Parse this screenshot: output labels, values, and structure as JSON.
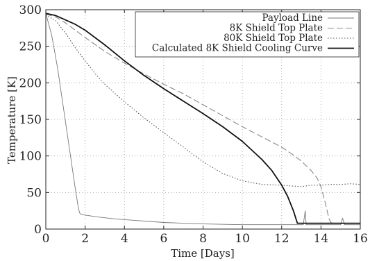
{
  "chart_data": {
    "type": "line",
    "title": "",
    "xlabel": "Time [Days]",
    "ylabel": "Temperature [K]",
    "xlim": [
      0,
      16
    ],
    "ylim": [
      0,
      300
    ],
    "xticks": [
      0,
      2,
      4,
      6,
      8,
      10,
      12,
      14,
      16
    ],
    "yticks": [
      0,
      50,
      100,
      150,
      200,
      250,
      300
    ],
    "grid": true,
    "legend_position": "top-right",
    "series": [
      {
        "name": "Payload Line",
        "style": "solid-thin",
        "color": "#777777",
        "x": [
          0,
          0.3,
          0.6,
          0.9,
          1.2,
          1.5,
          1.65,
          1.72,
          1.8,
          2.5,
          3.5,
          4.5,
          6,
          8,
          10,
          12,
          13.1,
          13.2,
          13.25,
          13.3,
          14,
          15,
          15.1,
          15.2,
          15.3,
          15.4,
          16
        ],
        "y": [
          295,
          265,
          220,
          165,
          110,
          55,
          30,
          22,
          20,
          17,
          14,
          12,
          9,
          7,
          6,
          6,
          6,
          25,
          6,
          6,
          6,
          6,
          15,
          6,
          6,
          6,
          6
        ]
      },
      {
        "name": "8K Shield Top Plate",
        "style": "dashed",
        "color": "#888888",
        "x": [
          0,
          0.5,
          1,
          1.5,
          2,
          3,
          4,
          5,
          6,
          7,
          8,
          9,
          10,
          11,
          12,
          12.5,
          13,
          13.5,
          13.8,
          14,
          14.2,
          14.4,
          14.5,
          14.6,
          15,
          16
        ],
        "y": [
          294,
          290,
          282,
          272,
          262,
          243,
          227,
          212,
          198,
          185,
          170,
          155,
          140,
          126,
          112,
          103,
          93,
          80,
          70,
          58,
          38,
          15,
          9,
          8,
          8,
          8
        ]
      },
      {
        "name": "80K Shield Top Plate",
        "style": "dotted",
        "color": "#555555",
        "x": [
          0,
          0.5,
          1,
          1.5,
          2,
          2.5,
          3,
          3.5,
          4,
          5,
          6,
          7,
          8,
          9,
          10,
          11,
          12,
          12.5,
          13,
          13.5,
          14,
          14.5,
          15,
          15.5,
          16
        ],
        "y": [
          293,
          285,
          268,
          248,
          230,
          213,
          198,
          186,
          174,
          152,
          132,
          112,
          92,
          76,
          66,
          61,
          60,
          59,
          58,
          60,
          60,
          61,
          61,
          62,
          61
        ]
      },
      {
        "name": "Calculated 8K Shield Cooling Curve",
        "style": "solid-thick",
        "color": "#111111",
        "x": [
          0,
          0.5,
          1,
          1.5,
          2,
          3,
          4,
          5,
          6,
          7,
          8,
          9,
          10,
          11,
          11.5,
          12,
          12.3,
          12.6,
          12.8,
          13,
          14,
          15,
          16
        ],
        "y": [
          295,
          292,
          286,
          280,
          272,
          252,
          230,
          210,
          192,
          175,
          158,
          140,
          120,
          95,
          80,
          60,
          45,
          25,
          8,
          8,
          8,
          8,
          8
        ]
      }
    ]
  }
}
